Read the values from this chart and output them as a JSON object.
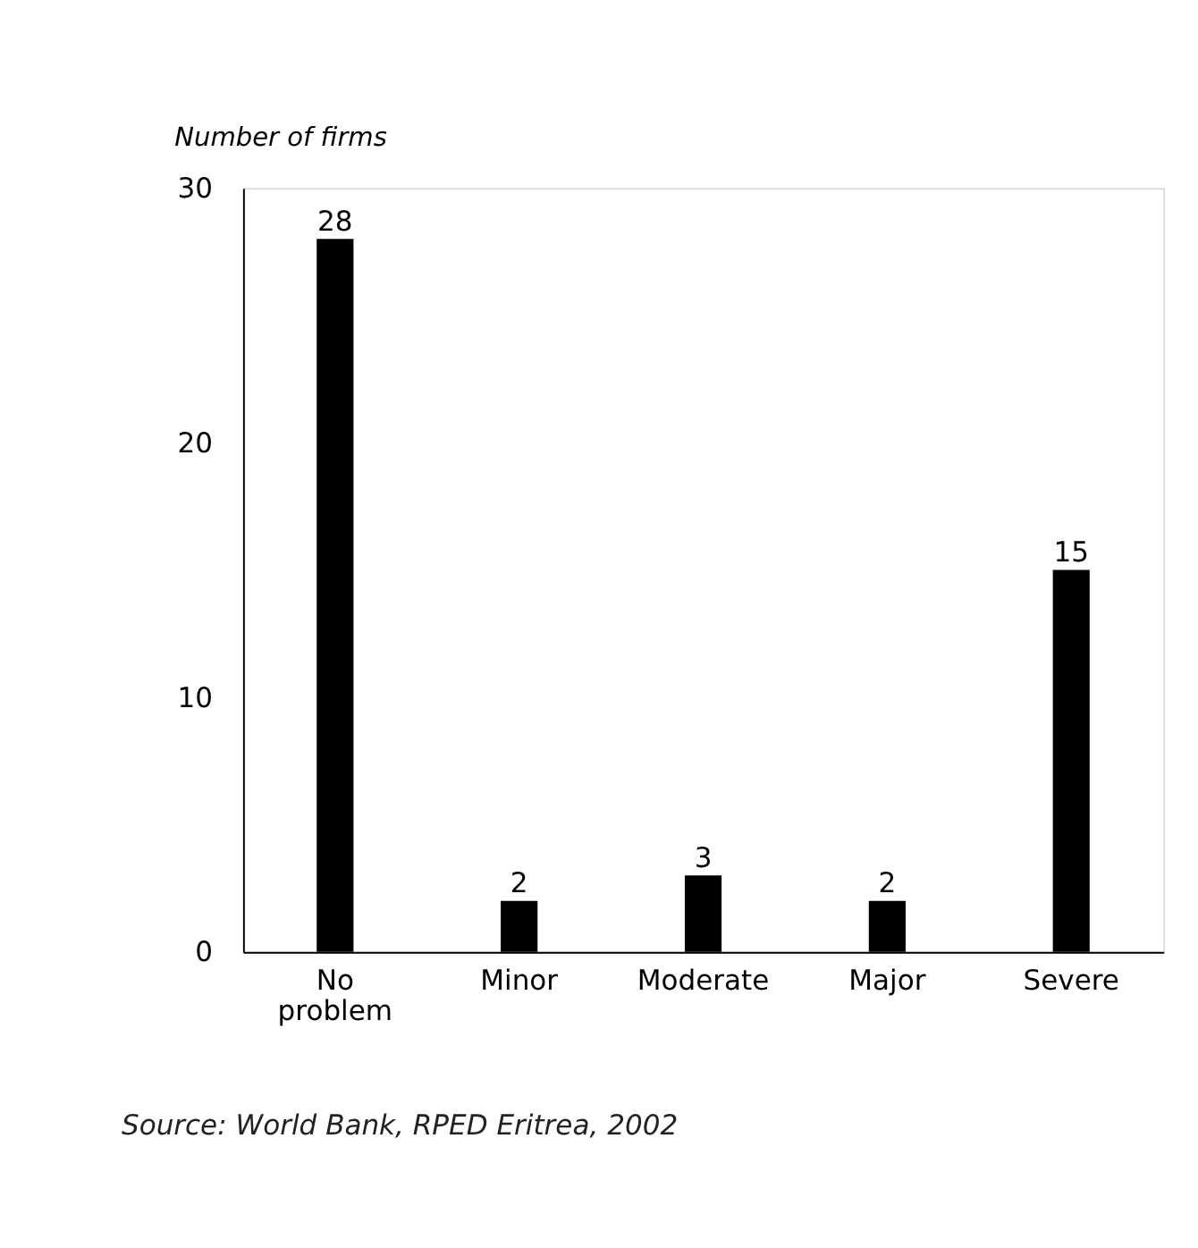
{
  "chart_data": {
    "type": "bar",
    "ylabel": "Number of firms",
    "categories": [
      "No problem",
      "Minor",
      "Moderate",
      "Major",
      "Severe"
    ],
    "values": [
      28,
      2,
      3,
      2,
      15
    ],
    "color": "#000000",
    "ylim": [
      0,
      30
    ],
    "yticks": [
      0,
      10,
      20,
      30
    ],
    "grid": false,
    "data_labels": true,
    "annotations": [
      "Source: World Bank, RPED Eritrea, 2002"
    ]
  }
}
